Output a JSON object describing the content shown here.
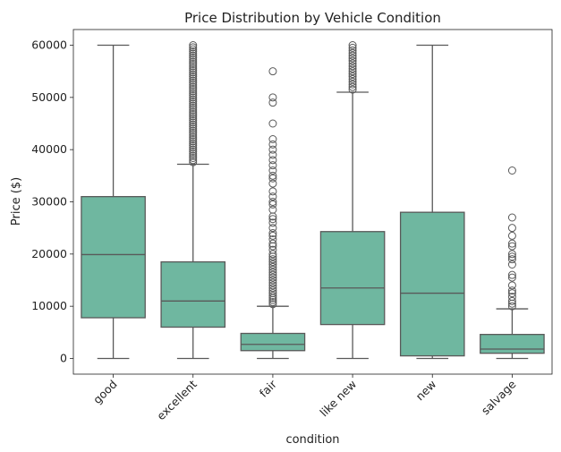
{
  "chart_data": {
    "type": "box",
    "title": "Price Distribution by Vehicle Condition",
    "xlabel": "condition",
    "ylabel": "Price ($)",
    "ylim": [
      -3000,
      63000
    ],
    "yticks": [
      0,
      10000,
      20000,
      30000,
      40000,
      50000,
      60000
    ],
    "categories": [
      "good",
      "excellent",
      "fair",
      "like new",
      "new",
      "salvage"
    ],
    "box_color": "#6fb7a0",
    "line_color": "#595959",
    "grid": false,
    "legend": "none",
    "boxes": [
      {
        "category": "good",
        "whisker_low": 0,
        "q1": 7800,
        "median": 19900,
        "q3": 31000,
        "whisker_high": 60000,
        "outliers": []
      },
      {
        "category": "excellent",
        "whisker_low": 0,
        "q1": 6000,
        "median": 11000,
        "q3": 18500,
        "whisker_high": 37200,
        "outliers": [
          37600,
          38000,
          38400,
          38800,
          39200,
          39600,
          40000,
          40400,
          40800,
          41200,
          41600,
          42000,
          42400,
          42800,
          43200,
          43600,
          44000,
          44400,
          44800,
          45200,
          45600,
          46000,
          46400,
          46800,
          47200,
          47600,
          48000,
          48400,
          48800,
          49200,
          49600,
          50000,
          50400,
          50800,
          51200,
          51600,
          52000,
          52400,
          52800,
          53200,
          53600,
          54000,
          54400,
          54800,
          55200,
          55600,
          56000,
          56400,
          56800,
          57200,
          57600,
          58000,
          58400,
          58800,
          59200,
          59600,
          60000
        ]
      },
      {
        "category": "fair",
        "whisker_low": 0,
        "q1": 1500,
        "median": 2700,
        "q3": 4800,
        "whisker_high": 10000,
        "outliers": [
          10400,
          10800,
          11200,
          11600,
          12000,
          12500,
          13000,
          13500,
          14000,
          14500,
          15000,
          15500,
          16000,
          16500,
          17000,
          17500,
          18000,
          18500,
          19000,
          19500,
          20000,
          20800,
          21500,
          22000,
          22800,
          23500,
          24000,
          25000,
          26000,
          26700,
          27200,
          28500,
          29500,
          30000,
          31000,
          32000,
          33500,
          34500,
          35000,
          36000,
          37000,
          38000,
          39000,
          40000,
          41000,
          42000,
          45000,
          49000,
          50000,
          55000
        ]
      },
      {
        "category": "like new",
        "whisker_low": 0,
        "q1": 6500,
        "median": 13500,
        "q3": 24300,
        "whisker_high": 51000,
        "outliers": [
          51500,
          52000,
          52500,
          53000,
          53500,
          54000,
          54500,
          55000,
          55500,
          56000,
          56500,
          57000,
          57500,
          58000,
          58500,
          59000,
          59500,
          60000
        ]
      },
      {
        "category": "new",
        "whisker_low": 0,
        "q1": 500,
        "median": 12500,
        "q3": 28000,
        "whisker_high": 60000,
        "outliers": []
      },
      {
        "category": "salvage",
        "whisker_low": 0,
        "q1": 1000,
        "median": 1800,
        "q3": 4600,
        "whisker_high": 9500,
        "outliers": [
          10000,
          10500,
          11000,
          11800,
          12500,
          13000,
          14000,
          15500,
          16000,
          18000,
          19000,
          19500,
          20000,
          21500,
          22000,
          23500,
          25000,
          27000,
          36000
        ]
      }
    ]
  }
}
